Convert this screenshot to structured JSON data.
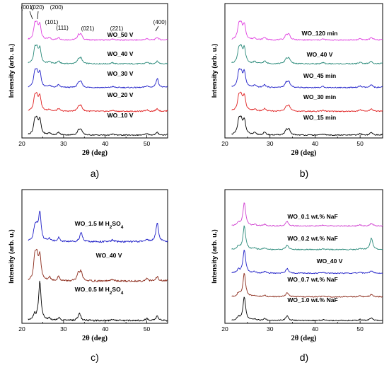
{
  "chart_data": [
    {
      "panel": "a)",
      "type": "line",
      "xlabel": "2θ (deg)",
      "ylabel": "Intensity (arb. u.)",
      "xlim": [
        20,
        55
      ],
      "xticks": [
        "20",
        "30",
        "40",
        "50"
      ],
      "stacked_offset": true,
      "peak_labels": [
        {
          "text": "(001)",
          "x": 22.6
        },
        {
          "text": "(020)",
          "x": 24.0
        },
        {
          "text": "(200)",
          "x": 26.2
        },
        {
          "text": "(101)",
          "x": 27.4
        },
        {
          "text": "(111)",
          "x": 28.8
        },
        {
          "text": "(021)",
          "x": 34.0
        },
        {
          "text": "(221)",
          "x": 42.0
        },
        {
          "text": "(400)",
          "x": 52.0
        }
      ],
      "series": [
        {
          "name": "WO_50 V",
          "color": "#e040e0"
        },
        {
          "name": "WO_40 V",
          "color": "#2a8a7a"
        },
        {
          "name": "WO_30 V",
          "color": "#2020c8"
        },
        {
          "name": "WO_20 V",
          "color": "#e02020"
        },
        {
          "name": "WO_10 V",
          "color": "#000000"
        }
      ]
    },
    {
      "panel": "b)",
      "type": "line",
      "xlabel": "2θ (deg)",
      "ylabel": "Intensity (arb. u.)",
      "xlim": [
        20,
        55
      ],
      "xticks": [
        "20",
        "30",
        "40",
        "50"
      ],
      "stacked_offset": true,
      "series": [
        {
          "name": "WO_120 min",
          "color": "#e040e0"
        },
        {
          "name": "WO_40 V",
          "color": "#2a8a7a"
        },
        {
          "name": "WO_45 min",
          "color": "#2020c8"
        },
        {
          "name": "WO_30 min",
          "color": "#e02020"
        },
        {
          "name": "WO_15 min",
          "color": "#000000"
        }
      ]
    },
    {
      "panel": "c)",
      "type": "line",
      "xlabel": "2θ (deg)",
      "ylabel": "Intensity (arb. u.)",
      "xlim": [
        20,
        55
      ],
      "xticks": [
        "20",
        "30",
        "40",
        "50"
      ],
      "stacked_offset": true,
      "series": [
        {
          "name": "WO_1.5 M H",
          "sub": "2",
          "after": "SO",
          "sub2": "4",
          "color": "#2020c8"
        },
        {
          "name": "WO_40 V",
          "color": "#8b2a1a"
        },
        {
          "name": "WO_0.5 M H",
          "sub": "2",
          "after": "SO",
          "sub2": "4",
          "color": "#000000"
        }
      ]
    },
    {
      "panel": "d)",
      "type": "line",
      "xlabel": "2θ (deg)",
      "ylabel": "Intensity (arb. u.)",
      "xlim": [
        20,
        55
      ],
      "xticks": [
        "20",
        "30",
        "40",
        "50"
      ],
      "stacked_offset": true,
      "series": [
        {
          "name": "WO_0.1 wt.% NaF",
          "color": "#d040d0"
        },
        {
          "name": "WO_0.2 wt.% NaF",
          "color": "#2a8a7a"
        },
        {
          "name": "WO_40 V",
          "color": "#2020c8"
        },
        {
          "name": "WO_0.7 wt.% NaF",
          "color": "#8b2a1a"
        },
        {
          "name": "WO_1.0 wt.% NaF",
          "color": "#000000"
        }
      ]
    }
  ]
}
